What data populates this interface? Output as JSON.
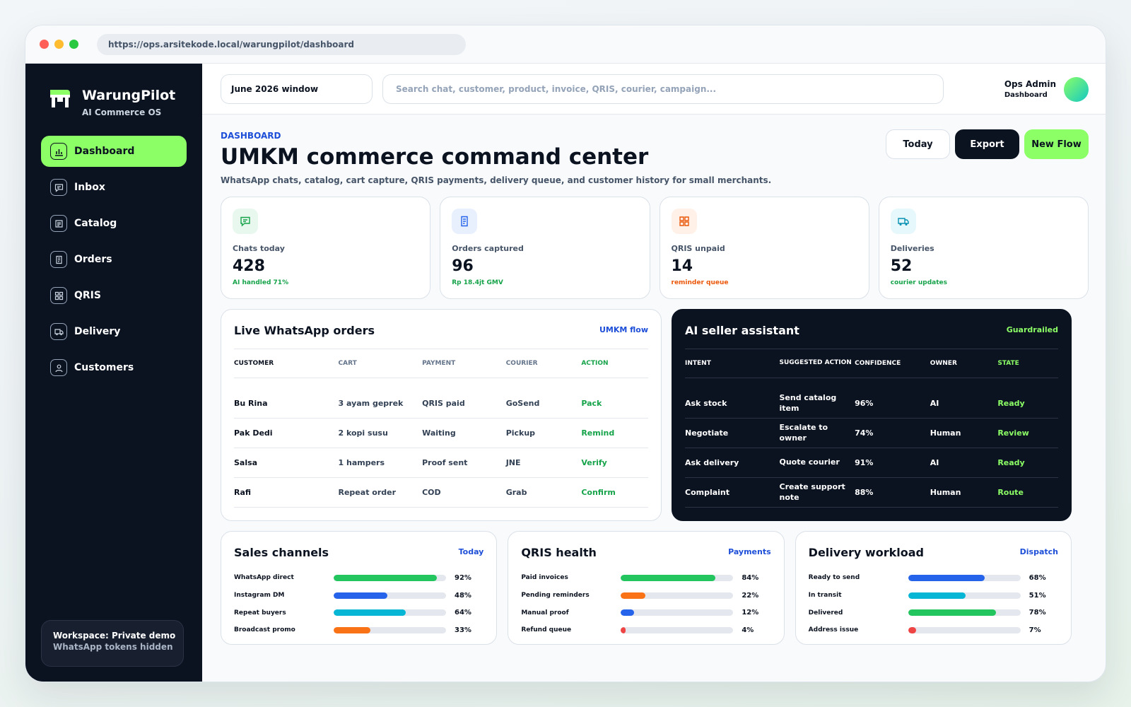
{
  "browser": {
    "url": "https://ops.arsitekode.local/warungpilot/dashboard"
  },
  "brand": {
    "name": "WarungPilot",
    "tagline": "AI Commerce OS",
    "color": "#8cff66"
  },
  "sidebar": {
    "items": [
      {
        "label": "Dashboard",
        "icon": "bar-chart-icon",
        "active": true
      },
      {
        "label": "Inbox",
        "icon": "chat-icon",
        "active": false
      },
      {
        "label": "Catalog",
        "icon": "list-icon",
        "active": false
      },
      {
        "label": "Orders",
        "icon": "receipt-icon",
        "active": false
      },
      {
        "label": "QRIS",
        "icon": "qr-grid-icon",
        "active": false
      },
      {
        "label": "Delivery",
        "icon": "truck-icon",
        "active": false
      },
      {
        "label": "Customers",
        "icon": "user-icon",
        "active": false
      }
    ],
    "workspace": {
      "line1": "Workspace: Private demo",
      "line2": "WhatsApp tokens hidden"
    }
  },
  "topbar": {
    "date_window": "June 2026 window",
    "search_placeholder": "Search chat, customer, product, invoice, QRIS, courier, campaign...",
    "user_name": "Ops Admin",
    "user_role": "Dashboard"
  },
  "header": {
    "eyebrow": "DASHBOARD",
    "title": "UMKM commerce command center",
    "subtitle": "WhatsApp chats, catalog, cart capture, QRIS payments, delivery queue, and customer history for small merchants.",
    "buttons": {
      "today": "Today",
      "export": "Export",
      "new_flow": "New Flow"
    }
  },
  "stats": [
    {
      "label": "Chats today",
      "value": "428",
      "note": "AI handled 71%",
      "icon": "chat-icon",
      "color": "#16a34a",
      "bg": "#e8f8ee"
    },
    {
      "label": "Orders captured",
      "value": "96",
      "note": "Rp 18.4jt GMV",
      "icon": "receipt-icon",
      "color": "#16a34a",
      "bg": "#e8f0fe"
    },
    {
      "label": "QRIS unpaid",
      "value": "14",
      "note": "reminder queue",
      "icon": "qr-grid-icon",
      "color": "#ea580c",
      "bg": "#fff1e8"
    },
    {
      "label": "Deliveries",
      "value": "52",
      "note": "courier updates",
      "icon": "truck-icon",
      "color": "#16a34a",
      "bg": "#e6f8fb"
    }
  ],
  "orders": {
    "title": "Live WhatsApp orders",
    "link": "UMKM flow",
    "columns": [
      "CUSTOMER",
      "CART",
      "PAYMENT",
      "COURIER",
      "ACTION"
    ],
    "rows": [
      [
        "Bu Rina",
        "3 ayam geprek",
        "QRIS paid",
        "GoSend",
        "Pack"
      ],
      [
        "Pak Dedi",
        "2 kopi susu",
        "Waiting",
        "Pickup",
        "Remind"
      ],
      [
        "Salsa",
        "1 hampers",
        "Proof sent",
        "JNE",
        "Verify"
      ],
      [
        "Rafi",
        "Repeat order",
        "COD",
        "Grab",
        "Confirm"
      ]
    ]
  },
  "assistant": {
    "title": "AI seller assistant",
    "badge": "Guardrailed",
    "columns": [
      "INTENT",
      "SUGGESTED ACTION",
      "CONFIDENCE",
      "OWNER",
      "STATE"
    ],
    "rows": [
      [
        "Ask stock",
        "Send catalog item",
        "96%",
        "AI",
        "Ready"
      ],
      [
        "Negotiate",
        "Escalate to owner",
        "74%",
        "Human",
        "Review"
      ],
      [
        "Ask delivery",
        "Quote courier",
        "91%",
        "AI",
        "Ready"
      ],
      [
        "Complaint",
        "Create support note",
        "88%",
        "Human",
        "Route"
      ]
    ]
  },
  "channels": [
    {
      "title": "Sales channels",
      "link": "Today",
      "bars": [
        {
          "label": "WhatsApp direct",
          "value": 92,
          "text": "92%",
          "color": "#22c55e"
        },
        {
          "label": "Instagram DM",
          "value": 48,
          "text": "48%",
          "color": "#2563eb"
        },
        {
          "label": "Repeat buyers",
          "value": 64,
          "text": "64%",
          "color": "#06b6d4"
        },
        {
          "label": "Broadcast promo",
          "value": 33,
          "text": "33%",
          "color": "#f97316"
        }
      ]
    },
    {
      "title": "QRIS health",
      "link": "Payments",
      "bars": [
        {
          "label": "Paid invoices",
          "value": 84,
          "text": "84%",
          "color": "#22c55e"
        },
        {
          "label": "Pending reminders",
          "value": 22,
          "text": "22%",
          "color": "#f97316"
        },
        {
          "label": "Manual proof",
          "value": 12,
          "text": "12%",
          "color": "#2563eb"
        },
        {
          "label": "Refund queue",
          "value": 4,
          "text": "4%",
          "color": "#ef4444"
        }
      ]
    },
    {
      "title": "Delivery workload",
      "link": "Dispatch",
      "bars": [
        {
          "label": "Ready to send",
          "value": 68,
          "text": "68%",
          "color": "#2563eb"
        },
        {
          "label": "In transit",
          "value": 51,
          "text": "51%",
          "color": "#06b6d4"
        },
        {
          "label": "Delivered",
          "value": 78,
          "text": "78%",
          "color": "#22c55e"
        },
        {
          "label": "Address issue",
          "value": 7,
          "text": "7%",
          "color": "#ef4444"
        }
      ]
    }
  ]
}
